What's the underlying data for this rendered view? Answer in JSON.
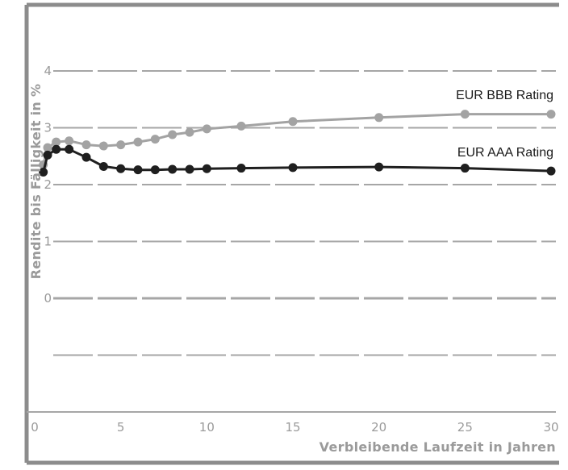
{
  "chart_data": {
    "type": "line",
    "title": "",
    "xlabel": "Verbleibende Laufzeit in Jahren",
    "ylabel": "Rendite bis Fälligkeit in %",
    "xlim": [
      0,
      30
    ],
    "ylim": [
      0,
      4
    ],
    "x_ticks": [
      "0",
      "5",
      "10",
      "15",
      "20",
      "25",
      "30"
    ],
    "y_ticks": [
      "0",
      "1",
      "2",
      "3",
      "4"
    ],
    "grid": "horizontal dashed",
    "legend": "inline labels at right",
    "colors": {
      "frame": "#8c8c8c",
      "grid": "#a6a6a6",
      "bbb": "#a3a3a3",
      "aaa": "#1f1f1f"
    },
    "series": [
      {
        "name": "EUR BBB Rating",
        "color": "#a3a3a3",
        "x": [
          0.5,
          0.75,
          1.25,
          2,
          3,
          4,
          5,
          6,
          7,
          8,
          9,
          10,
          12,
          15,
          20,
          25,
          30
        ],
        "y": [
          2.35,
          2.65,
          2.75,
          2.77,
          2.7,
          2.68,
          2.7,
          2.75,
          2.8,
          2.88,
          2.92,
          2.98,
          3.03,
          3.11,
          3.18,
          3.24,
          3.24
        ]
      },
      {
        "name": "EUR AAA Rating",
        "color": "#1f1f1f",
        "x": [
          0.5,
          0.75,
          1.25,
          2,
          3,
          4,
          5,
          6,
          7,
          8,
          9,
          10,
          12,
          15,
          20,
          25,
          30
        ],
        "y": [
          2.22,
          2.52,
          2.62,
          2.62,
          2.48,
          2.32,
          2.28,
          2.26,
          2.26,
          2.27,
          2.27,
          2.28,
          2.29,
          2.3,
          2.31,
          2.29,
          2.24
        ]
      }
    ]
  }
}
